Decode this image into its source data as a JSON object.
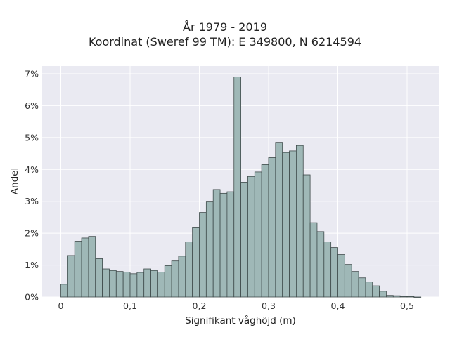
{
  "chart_data": {
    "type": "bar",
    "title": "År 1979 - 2019",
    "subtitle": "Koordinat (Sweref 99 TM): E 349800, N 6214594",
    "xlabel": "Signifikant våghöjd (m)",
    "ylabel": "Andel",
    "xlim": [
      -0.02,
      0.54
    ],
    "ylim": [
      0,
      0.073
    ],
    "x_ticks": [
      0,
      0.1,
      0.2,
      0.3,
      0.4,
      0.5
    ],
    "x_tick_labels": [
      "0",
      "0,1",
      "0,2",
      "0,3",
      "0,4",
      "0,5"
    ],
    "y_ticks": [
      0,
      0.01,
      0.02,
      0.03,
      0.04,
      0.05,
      0.06,
      0.07
    ],
    "y_tick_labels": [
      "0%",
      "1%",
      "2%",
      "3%",
      "4%",
      "5%",
      "6%",
      "7%"
    ],
    "bin_width": 0.01,
    "bin_starts": [
      0.0,
      0.01,
      0.02,
      0.03,
      0.04,
      0.05,
      0.06,
      0.07,
      0.08,
      0.09,
      0.1,
      0.11,
      0.12,
      0.13,
      0.14,
      0.15,
      0.16,
      0.17,
      0.18,
      0.19,
      0.2,
      0.21,
      0.22,
      0.23,
      0.24,
      0.25,
      0.26,
      0.27,
      0.28,
      0.29,
      0.3,
      0.31,
      0.32,
      0.33,
      0.34,
      0.35,
      0.36,
      0.37,
      0.38,
      0.39,
      0.4,
      0.41,
      0.42,
      0.43,
      0.44,
      0.45,
      0.46,
      0.47,
      0.48,
      0.49,
      0.5,
      0.51
    ],
    "values": [
      0.004,
      0.013,
      0.0175,
      0.0185,
      0.019,
      0.012,
      0.0088,
      0.0083,
      0.008,
      0.0078,
      0.0073,
      0.0077,
      0.0088,
      0.0083,
      0.0078,
      0.0098,
      0.0113,
      0.0128,
      0.0173,
      0.0217,
      0.0265,
      0.0298,
      0.0337,
      0.0325,
      0.033,
      0.069,
      0.036,
      0.0378,
      0.0392,
      0.0415,
      0.0437,
      0.0485,
      0.0453,
      0.0458,
      0.0475,
      0.0383,
      0.0233,
      0.0205,
      0.0173,
      0.0155,
      0.0133,
      0.0102,
      0.008,
      0.006,
      0.0047,
      0.0035,
      0.0018,
      0.0005,
      0.0004,
      0.0002,
      0.0002,
      0.0
    ],
    "grid": true,
    "legend": "none",
    "colors": {
      "bar_fill": "#9fb8b7",
      "bar_edge": "#3e4a4a",
      "plot_background": "#eaeaf2",
      "grid": "#ffffff"
    }
  }
}
